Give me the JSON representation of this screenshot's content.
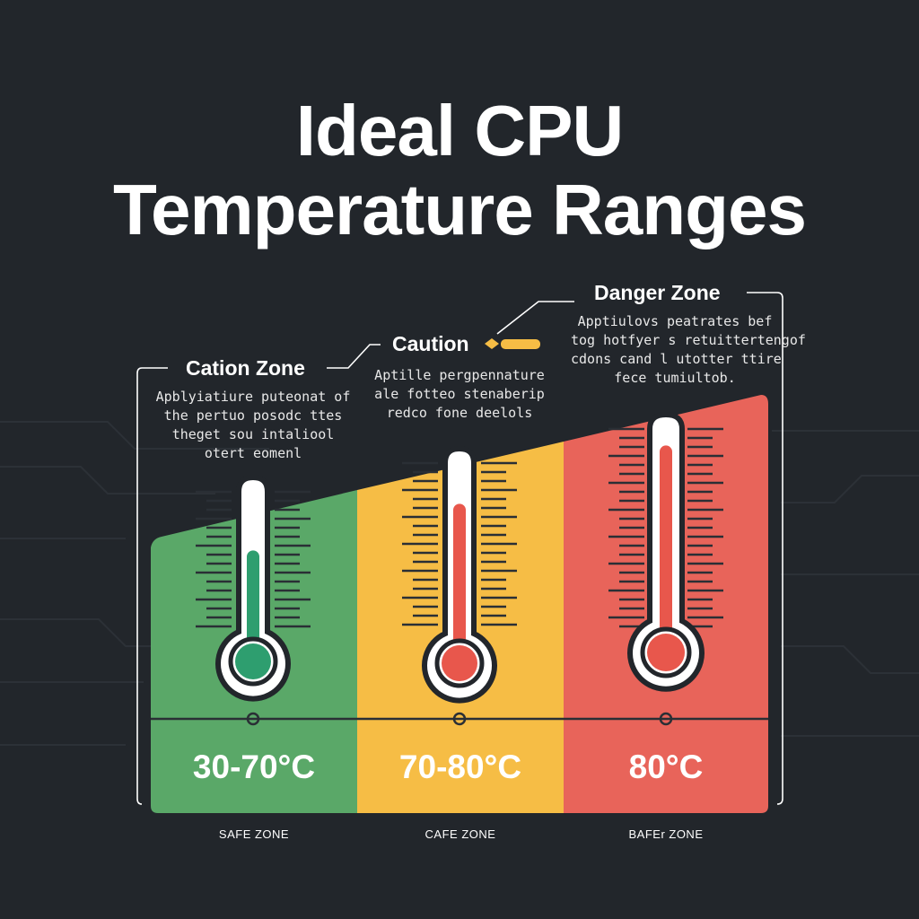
{
  "title": {
    "line1": "Ideal CPU",
    "line2": "Temperature Ranges"
  },
  "colors": {
    "background": "#22262b",
    "safe": "#5aa868",
    "caution": "#f6bd45",
    "danger": "#e8645a",
    "bulb_safe": "#2e9e6f",
    "bulb_caution": "#e8574c",
    "bulb_danger": "#e8574c"
  },
  "zones": [
    {
      "callout_title": "Cation Zone",
      "callout_lines": [
        "Apblyiatiure puteonat of",
        "the pertuo posodc ttes",
        "theget sou intaliool",
        "otert eomenl"
      ],
      "range": "30-70°C",
      "caption": "SAFE   ZONE",
      "fill_level": 0.62
    },
    {
      "callout_title": "Caution",
      "callout_lines": [
        "Aptille pergpennature",
        "ale fotteo stenaberip",
        "redco fone deelols"
      ],
      "range": "70-80°C",
      "caption": "CAFE   ZONE",
      "fill_level": 0.78
    },
    {
      "callout_title": "Danger Zone",
      "callout_lines": [
        "Apptiulovs peatrates bef",
        "tog hotfyer s retuittertengof",
        "cdons cand l utotter ttire",
        "fece tumiultob."
      ],
      "range": "80°C",
      "caption": "BAFEr   ZONE",
      "fill_level": 0.92
    }
  ]
}
